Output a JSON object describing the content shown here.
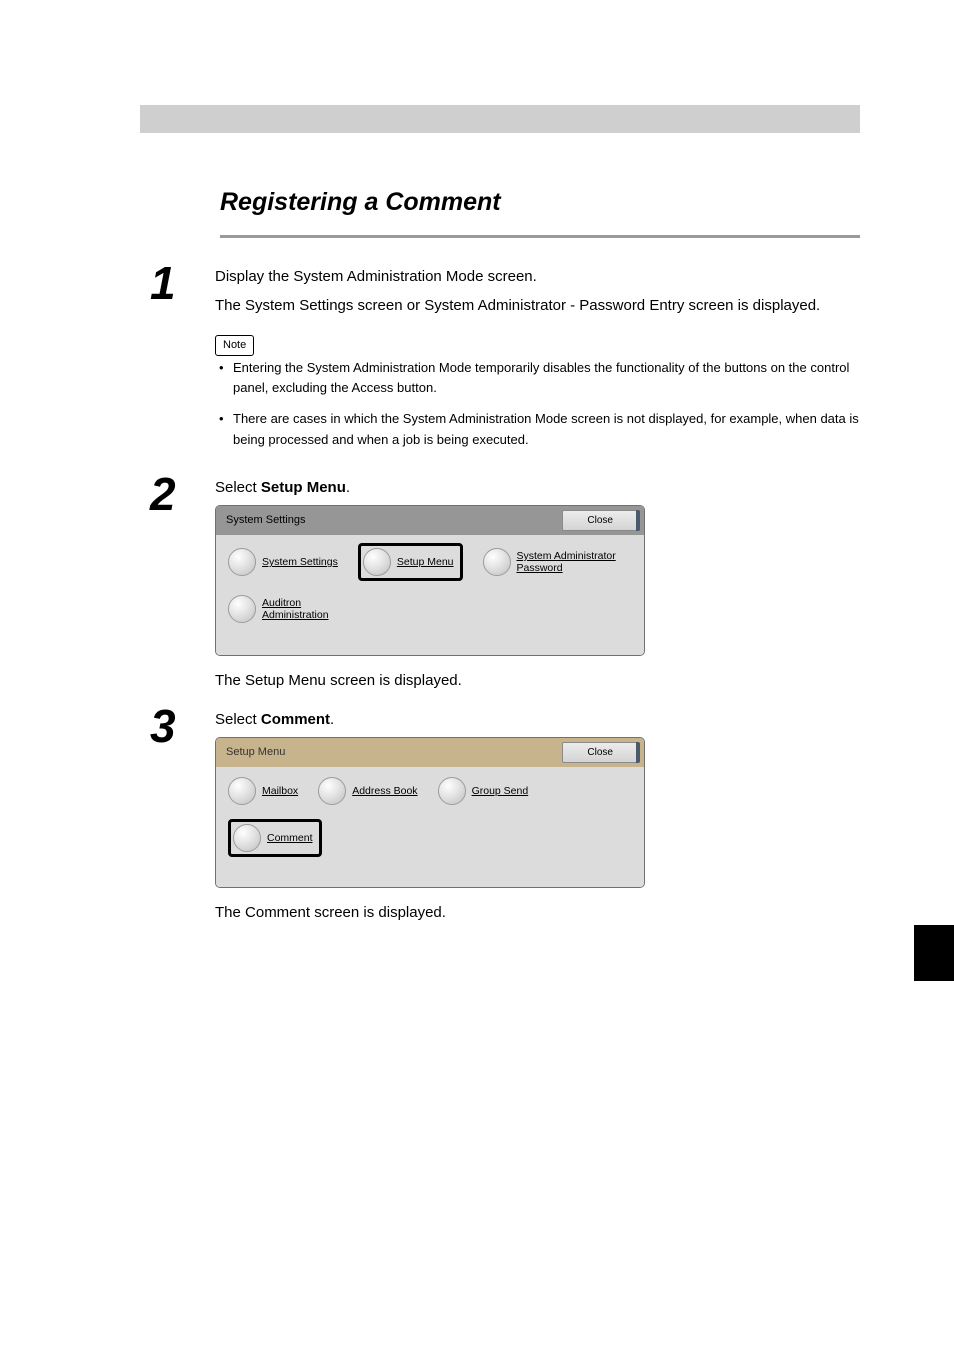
{
  "section": {
    "title": "Registering a Comment"
  },
  "step1": {
    "num": "1",
    "heading": "Display the System Administration Mode screen.",
    "result": "The System Settings screen or System Administrator - Password Entry screen is displayed.",
    "note_label": "Note",
    "notes": [
      "Entering the System Administration Mode temporarily disables the functionality of the buttons on the control panel, excluding the Access button.",
      "There are cases in which the System Administration Mode screen is not displayed, for example, when data is being processed and when a job is being executed."
    ]
  },
  "step2": {
    "num": "2",
    "heading": "Select Setup Menu.",
    "result": "The Setup Menu screen is displayed.",
    "panel": {
      "title": "System Settings",
      "close": "Close",
      "titlebar_bg": "#969696",
      "buttons_row1": [
        {
          "label": "System Settings",
          "selected": false
        },
        {
          "label": "Setup Menu",
          "selected": true
        },
        {
          "label": "System Administrator\nPassword",
          "selected": false
        }
      ],
      "buttons_row2": [
        {
          "label": "Auditron\nAdministration",
          "selected": false
        }
      ]
    }
  },
  "step3": {
    "num": "3",
    "heading": "Select Comment.",
    "result": "The Comment screen is displayed.",
    "panel": {
      "title": "Setup Menu",
      "close": "Close",
      "titlebar_bg": "#c7b38c",
      "buttons_row1": [
        {
          "label": "Mailbox",
          "selected": false
        },
        {
          "label": "Address Book",
          "selected": false
        },
        {
          "label": "Group Send",
          "selected": false
        }
      ],
      "buttons_row2": [
        {
          "label": "Comment",
          "selected": true
        }
      ]
    }
  },
  "colors": {
    "page_bg": "#ffffff",
    "top_bar": "#cfcfcf",
    "rule": "#9a9a9a",
    "shot_body_bg": "#dcdcdc"
  }
}
